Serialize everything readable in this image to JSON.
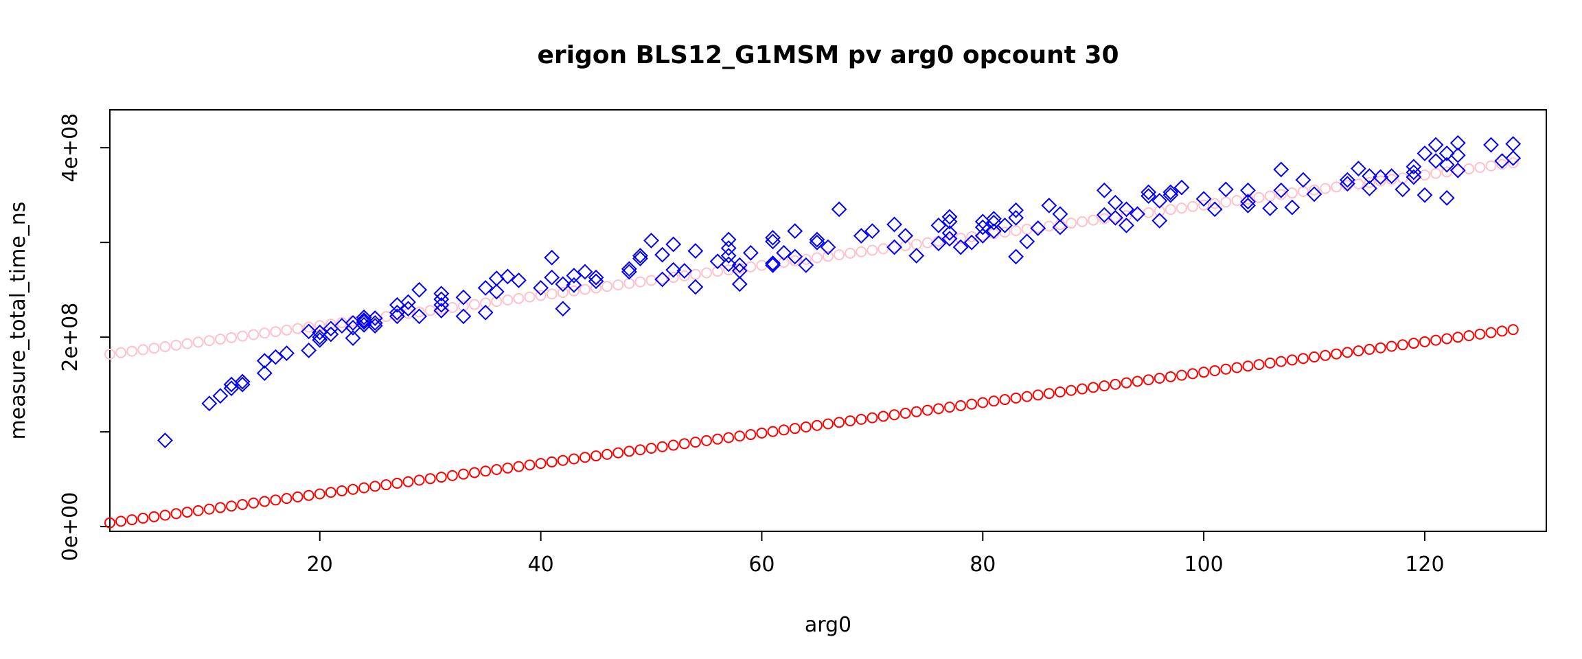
{
  "chart_data": {
    "type": "scatter",
    "title": "erigon BLS12_G1MSM pv arg0 opcount 30",
    "xlabel": "arg0",
    "ylabel": "measure_total_time_ns",
    "xlim": [
      1,
      131
    ],
    "ylim": [
      -5000000,
      440000000
    ],
    "x_ticks": [
      20,
      40,
      60,
      80,
      100,
      120
    ],
    "x_tick_labels": [
      "20",
      "40",
      "60",
      "80",
      "100",
      "120"
    ],
    "y_ticks": [
      0,
      100000000,
      200000000,
      300000000,
      400000000
    ],
    "y_tick_labels": [
      "0e+00",
      "",
      "2e+08",
      "",
      "4e+08"
    ],
    "grid": false,
    "legend": "none",
    "series": [
      {
        "marker": "diamond",
        "color": "#0000ff",
        "points": [
          [
            6,
            91000000
          ],
          [
            10,
            130000000
          ],
          [
            11,
            138000000
          ],
          [
            12,
            150000000
          ],
          [
            12,
            146000000
          ],
          [
            13,
            153000000
          ],
          [
            13,
            150000000
          ],
          [
            15,
            175000000
          ],
          [
            15,
            162000000
          ],
          [
            16,
            179000000
          ],
          [
            17,
            183000000
          ],
          [
            19,
            206000000
          ],
          [
            19,
            186000000
          ],
          [
            20,
            205000000
          ],
          [
            20,
            197000000
          ],
          [
            20,
            200000000
          ],
          [
            21,
            209000000
          ],
          [
            21,
            203000000
          ],
          [
            22,
            212000000
          ],
          [
            23,
            199000000
          ],
          [
            23,
            210000000
          ],
          [
            23,
            215000000
          ],
          [
            24,
            218000000
          ],
          [
            24,
            213000000
          ],
          [
            24,
            221000000
          ],
          [
            24,
            216000000
          ],
          [
            25,
            215000000
          ],
          [
            25,
            212000000
          ],
          [
            25,
            220000000
          ],
          [
            27,
            234000000
          ],
          [
            27,
            226000000
          ],
          [
            27,
            222000000
          ],
          [
            28,
            230000000
          ],
          [
            28,
            237000000
          ],
          [
            29,
            222000000
          ],
          [
            29,
            250000000
          ],
          [
            31,
            240000000
          ],
          [
            31,
            246000000
          ],
          [
            31,
            228000000
          ],
          [
            31,
            234000000
          ],
          [
            33,
            222000000
          ],
          [
            33,
            242000000
          ],
          [
            35,
            252000000
          ],
          [
            35,
            226000000
          ],
          [
            36,
            262000000
          ],
          [
            36,
            248000000
          ],
          [
            37,
            264000000
          ],
          [
            38,
            260000000
          ],
          [
            40,
            252000000
          ],
          [
            41,
            284000000
          ],
          [
            41,
            263000000
          ],
          [
            42,
            256000000
          ],
          [
            42,
            230000000
          ],
          [
            43,
            265000000
          ],
          [
            43,
            255000000
          ],
          [
            44,
            269000000
          ],
          [
            45,
            263000000
          ],
          [
            45,
            259000000
          ],
          [
            48,
            272000000
          ],
          [
            48,
            269000000
          ],
          [
            49,
            283000000
          ],
          [
            49,
            286000000
          ],
          [
            50,
            302000000
          ],
          [
            51,
            261000000
          ],
          [
            51,
            287000000
          ],
          [
            52,
            298000000
          ],
          [
            52,
            271000000
          ],
          [
            53,
            270000000
          ],
          [
            54,
            291000000
          ],
          [
            54,
            253000000
          ],
          [
            56,
            280000000
          ],
          [
            57,
            303000000
          ],
          [
            57,
            294000000
          ],
          [
            57,
            286000000
          ],
          [
            57,
            277000000
          ],
          [
            58,
            276000000
          ],
          [
            58,
            270000000
          ],
          [
            58,
            256000000
          ],
          [
            59,
            289000000
          ],
          [
            61,
            305000000
          ],
          [
            61,
            301000000
          ],
          [
            61,
            278000000
          ],
          [
            61,
            276000000
          ],
          [
            62,
            289000000
          ],
          [
            63,
            312000000
          ],
          [
            63,
            285000000
          ],
          [
            64,
            276000000
          ],
          [
            65,
            303000000
          ],
          [
            65,
            300000000
          ],
          [
            66,
            295000000
          ],
          [
            67,
            335000000
          ],
          [
            69,
            307000000
          ],
          [
            70,
            312000000
          ],
          [
            72,
            319000000
          ],
          [
            72,
            295000000
          ],
          [
            73,
            307000000
          ],
          [
            74,
            286000000
          ],
          [
            76,
            318000000
          ],
          [
            76,
            299000000
          ],
          [
            77,
            327000000
          ],
          [
            77,
            322000000
          ],
          [
            77,
            310000000
          ],
          [
            77,
            304000000
          ],
          [
            78,
            295000000
          ],
          [
            79,
            300000000
          ],
          [
            80,
            322000000
          ],
          [
            80,
            316000000
          ],
          [
            80,
            307000000
          ],
          [
            81,
            325000000
          ],
          [
            81,
            321000000
          ],
          [
            81,
            312000000
          ],
          [
            82,
            318000000
          ],
          [
            83,
            334000000
          ],
          [
            83,
            326000000
          ],
          [
            83,
            285000000
          ],
          [
            84,
            301000000
          ],
          [
            85,
            315000000
          ],
          [
            86,
            339000000
          ],
          [
            87,
            330000000
          ],
          [
            87,
            316000000
          ],
          [
            91,
            355000000
          ],
          [
            91,
            329000000
          ],
          [
            92,
            342000000
          ],
          [
            92,
            326000000
          ],
          [
            93,
            335000000
          ],
          [
            93,
            318000000
          ],
          [
            94,
            330000000
          ],
          [
            95,
            353000000
          ],
          [
            95,
            349000000
          ],
          [
            96,
            344000000
          ],
          [
            96,
            323000000
          ],
          [
            97,
            353000000
          ],
          [
            97,
            350000000
          ],
          [
            98,
            358000000
          ],
          [
            100,
            346000000
          ],
          [
            101,
            335000000
          ],
          [
            102,
            356000000
          ],
          [
            104,
            355000000
          ],
          [
            104,
            343000000
          ],
          [
            104,
            339000000
          ],
          [
            106,
            336000000
          ],
          [
            107,
            377000000
          ],
          [
            107,
            355000000
          ],
          [
            108,
            337000000
          ],
          [
            109,
            366000000
          ],
          [
            110,
            351000000
          ],
          [
            113,
            362000000
          ],
          [
            113,
            366000000
          ],
          [
            114,
            378000000
          ],
          [
            115,
            370000000
          ],
          [
            115,
            357000000
          ],
          [
            116,
            369000000
          ],
          [
            117,
            370000000
          ],
          [
            118,
            356000000
          ],
          [
            119,
            380000000
          ],
          [
            119,
            374000000
          ],
          [
            119,
            369000000
          ],
          [
            120,
            394000000
          ],
          [
            120,
            350000000
          ],
          [
            121,
            403000000
          ],
          [
            121,
            386000000
          ],
          [
            122,
            394000000
          ],
          [
            122,
            382000000
          ],
          [
            122,
            347000000
          ],
          [
            123,
            405000000
          ],
          [
            123,
            392000000
          ],
          [
            123,
            376000000
          ],
          [
            126,
            403000000
          ],
          [
            127,
            386000000
          ],
          [
            128,
            404000000
          ],
          [
            128,
            389000000
          ]
        ]
      },
      {
        "marker": "circle",
        "color": "#ffc0cb",
        "linear": {
          "x_start": 1,
          "x_end": 128,
          "y_start": 182000000,
          "y_end": 384000000
        }
      },
      {
        "marker": "circle",
        "color": "#ff0000",
        "linear": {
          "x_start": 1,
          "x_end": 128,
          "y_start": 4000000,
          "y_end": 208000000
        }
      }
    ]
  }
}
